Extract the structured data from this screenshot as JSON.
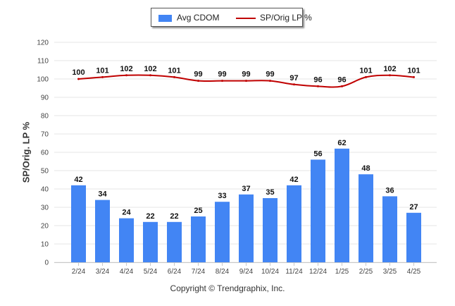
{
  "legend": {
    "bar_label": "Avg CDOM",
    "line_label": "SP/Orig LP %"
  },
  "copyright": "Copyright © Trendgraphix, Inc.",
  "colors": {
    "bar": "#4285f4",
    "line": "#c00000",
    "grid": "#e6e6e6"
  },
  "chart_data": {
    "type": "bar",
    "categories": [
      "2/24",
      "3/24",
      "4/24",
      "5/24",
      "6/24",
      "7/24",
      "8/24",
      "9/24",
      "10/24",
      "11/24",
      "12/24",
      "1/25",
      "2/25",
      "3/25",
      "4/25"
    ],
    "series": [
      {
        "name": "Avg CDOM",
        "type": "bar",
        "values": [
          42,
          34,
          24,
          22,
          22,
          25,
          33,
          37,
          35,
          42,
          56,
          62,
          48,
          36,
          27
        ]
      },
      {
        "name": "SP/Orig LP %",
        "type": "line",
        "values": [
          100,
          101,
          102,
          102,
          101,
          99,
          99,
          99,
          99,
          97,
          96,
          96,
          101,
          102,
          101
        ]
      }
    ],
    "ylabel": "SP/Orig. LP %",
    "ylim": [
      0,
      120
    ],
    "yticks": [
      0,
      10,
      20,
      30,
      40,
      50,
      60,
      70,
      80,
      90,
      100,
      110,
      120
    ],
    "grid": true,
    "legend_position": "top-center"
  }
}
